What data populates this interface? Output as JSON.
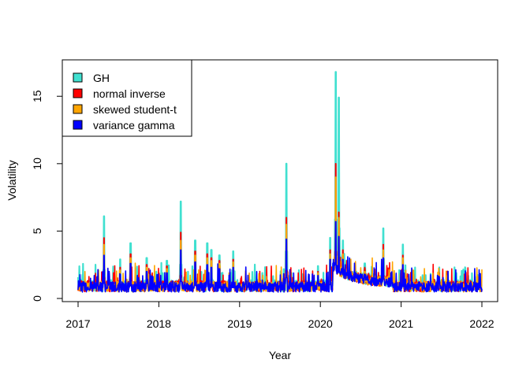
{
  "chart_data": {
    "type": "line",
    "title": "",
    "xlabel": "Year",
    "ylabel": "Volatility",
    "xlim": [
      2017,
      2022
    ],
    "ylim": [
      0,
      17
    ],
    "x_ticks": [
      "2017",
      "2018",
      "2019",
      "2020",
      "2021",
      "2022"
    ],
    "y_ticks": [
      "0",
      "5",
      "10",
      "15"
    ],
    "legend_position": "top-left",
    "grid": false,
    "series": [
      {
        "name": "GH",
        "color": "#40E0D0",
        "baseline": 0.95,
        "spikes": [
          [
            2017.32,
            6.1
          ],
          [
            2017.52,
            2.9
          ],
          [
            2017.65,
            4.1
          ],
          [
            2017.85,
            3.0
          ],
          [
            2018.1,
            2.8
          ],
          [
            2018.27,
            7.2
          ],
          [
            2018.45,
            4.3
          ],
          [
            2018.6,
            4.1
          ],
          [
            2018.65,
            3.6
          ],
          [
            2018.75,
            3.2
          ],
          [
            2018.92,
            3.5
          ],
          [
            2019.58,
            10.0
          ],
          [
            2019.97,
            2.4
          ],
          [
            2020.12,
            4.5
          ],
          [
            2020.19,
            16.8
          ],
          [
            2020.23,
            14.9
          ],
          [
            2020.28,
            4.3
          ],
          [
            2020.55,
            2.6
          ],
          [
            2020.78,
            5.2
          ],
          [
            2021.02,
            4.0
          ],
          [
            2021.47,
            2.2
          ]
        ]
      },
      {
        "name": "normal inverse",
        "color": "#FF0000",
        "baseline": 0.9,
        "spikes": [
          [
            2017.32,
            4.5
          ],
          [
            2017.52,
            2.3
          ],
          [
            2017.65,
            3.3
          ],
          [
            2017.85,
            2.5
          ],
          [
            2018.1,
            2.4
          ],
          [
            2018.27,
            4.9
          ],
          [
            2018.45,
            3.5
          ],
          [
            2018.6,
            3.3
          ],
          [
            2018.65,
            3.0
          ],
          [
            2018.75,
            2.8
          ],
          [
            2018.92,
            2.9
          ],
          [
            2019.58,
            6.0
          ],
          [
            2019.97,
            2.0
          ],
          [
            2020.12,
            3.6
          ],
          [
            2020.19,
            10.0
          ],
          [
            2020.23,
            6.4
          ],
          [
            2020.28,
            3.6
          ],
          [
            2020.55,
            2.2
          ],
          [
            2020.78,
            4.0
          ],
          [
            2021.02,
            3.2
          ],
          [
            2021.47,
            1.9
          ]
        ]
      },
      {
        "name": "skewed student-t",
        "color": "#FFA500",
        "baseline": 0.88,
        "spikes": [
          [
            2017.32,
            4.0
          ],
          [
            2017.52,
            2.1
          ],
          [
            2017.65,
            3.0
          ],
          [
            2017.85,
            2.3
          ],
          [
            2018.1,
            2.2
          ],
          [
            2018.27,
            4.3
          ],
          [
            2018.45,
            3.2
          ],
          [
            2018.6,
            3.0
          ],
          [
            2018.65,
            2.8
          ],
          [
            2018.75,
            2.6
          ],
          [
            2018.92,
            2.7
          ],
          [
            2019.58,
            5.5
          ],
          [
            2019.97,
            1.9
          ],
          [
            2020.12,
            3.3
          ],
          [
            2020.19,
            9.0
          ],
          [
            2020.23,
            6.0
          ],
          [
            2020.28,
            3.3
          ],
          [
            2020.55,
            2.0
          ],
          [
            2020.78,
            3.6
          ],
          [
            2021.02,
            3.0
          ],
          [
            2021.47,
            1.8
          ]
        ]
      },
      {
        "name": "variance gamma",
        "color": "#0000FF",
        "baseline": 0.85,
        "spikes": [
          [
            2017.32,
            3.2
          ],
          [
            2017.52,
            1.8
          ],
          [
            2017.65,
            2.6
          ],
          [
            2017.85,
            2.0
          ],
          [
            2018.1,
            1.9
          ],
          [
            2018.27,
            3.6
          ],
          [
            2018.45,
            2.7
          ],
          [
            2018.6,
            2.5
          ],
          [
            2018.65,
            2.3
          ],
          [
            2018.75,
            2.2
          ],
          [
            2018.92,
            2.3
          ],
          [
            2019.58,
            4.4
          ],
          [
            2019.97,
            1.7
          ],
          [
            2020.12,
            2.9
          ],
          [
            2020.19,
            5.7
          ],
          [
            2020.23,
            4.6
          ],
          [
            2020.28,
            2.9
          ],
          [
            2020.55,
            1.8
          ],
          [
            2020.78,
            3.0
          ],
          [
            2021.02,
            2.5
          ],
          [
            2021.47,
            1.6
          ]
        ]
      }
    ]
  }
}
